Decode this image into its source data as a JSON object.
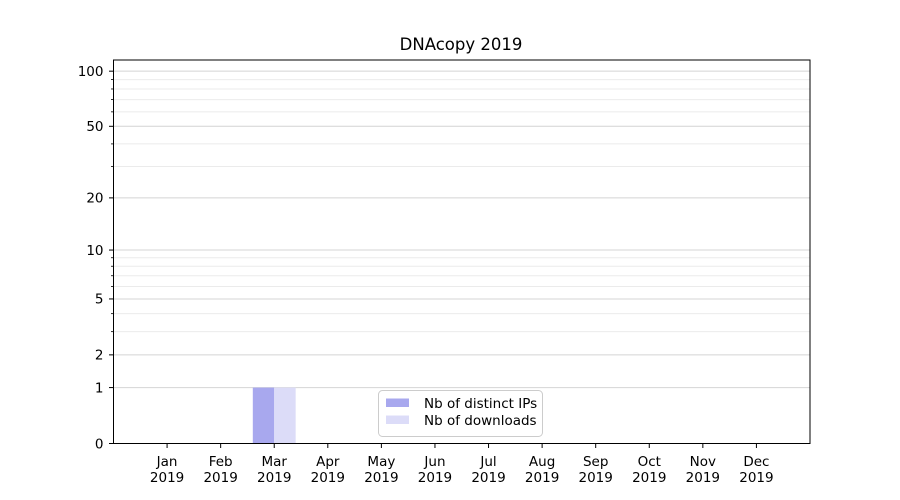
{
  "title": "DNAcopy 2019",
  "chart_data": {
    "type": "bar",
    "title": "DNAcopy 2019",
    "categories": [
      "Jan 2019",
      "Feb 2019",
      "Mar 2019",
      "Apr 2019",
      "May 2019",
      "Jun 2019",
      "Jul 2019",
      "Aug 2019",
      "Sep 2019",
      "Oct 2019",
      "Nov 2019",
      "Dec 2019"
    ],
    "series": [
      {
        "name": "Nb of distinct IPs",
        "color": "#a8a8ee",
        "values": [
          0,
          0,
          1,
          0,
          0,
          0,
          0,
          0,
          0,
          0,
          0,
          0
        ]
      },
      {
        "name": "Nb of downloads",
        "color": "#dcdcf8",
        "values": [
          0,
          0,
          1,
          0,
          0,
          0,
          0,
          0,
          0,
          0,
          0,
          0
        ]
      }
    ],
    "xlabel": "",
    "ylabel": "",
    "y_scale": "log10(value+1)",
    "ylim": [
      0,
      115
    ],
    "y_major_ticks": [
      0,
      1,
      2,
      5,
      10,
      20,
      50,
      100
    ],
    "y_minor_ticks": [
      3,
      4,
      6,
      7,
      8,
      9,
      30,
      40,
      60,
      70,
      80,
      90
    ],
    "grid": true,
    "legend_position": "bottom-center"
  },
  "colors": {
    "background": "#ffffff",
    "axis": "#000000",
    "grid_major": "#d4d4d4",
    "grid_minor": "#ebebeb",
    "legend_border": "#cccccc",
    "legend_background": "#ffffff"
  }
}
